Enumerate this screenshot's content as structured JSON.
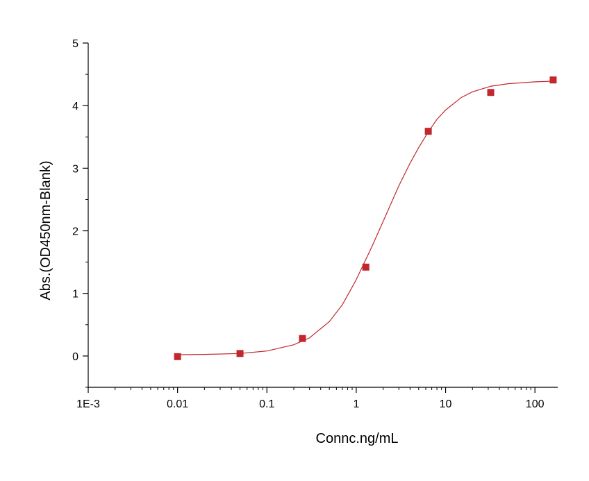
{
  "chart_data": {
    "type": "scatter",
    "title": "",
    "xlabel": "Connc.ng/mL",
    "ylabel": "Abs.(OD450nm-Blank)",
    "x_scale": "log",
    "xlim": [
      0.001,
      180
    ],
    "ylim": [
      -0.5,
      5
    ],
    "x_ticks": [
      0.001,
      0.01,
      0.1,
      1,
      10,
      100
    ],
    "x_tick_labels": [
      "1E-3",
      "0.01",
      "0.1",
      "1",
      "10",
      "100"
    ],
    "y_ticks": [
      0,
      1,
      2,
      3,
      4,
      5
    ],
    "y_tick_labels": [
      "0",
      "1",
      "2",
      "3",
      "4",
      "5"
    ],
    "grid": false,
    "series": [
      {
        "type": "scatter",
        "marker": "square",
        "x": [
          0.01,
          0.05,
          0.25,
          1.28,
          6.4,
          32,
          160
        ],
        "y": [
          -0.01,
          0.04,
          0.28,
          1.42,
          3.59,
          4.21,
          4.41
        ]
      },
      {
        "type": "line",
        "x": [
          0.01,
          0.02,
          0.05,
          0.1,
          0.2,
          0.3,
          0.5,
          0.7,
          1,
          1.5,
          2,
          3,
          4,
          5,
          6.4,
          8,
          10,
          15,
          20,
          32,
          50,
          100,
          160
        ],
        "y": [
          0.02,
          0.025,
          0.04,
          0.08,
          0.18,
          0.29,
          0.55,
          0.82,
          1.22,
          1.75,
          2.15,
          2.72,
          3.08,
          3.33,
          3.58,
          3.78,
          3.93,
          4.13,
          4.22,
          4.31,
          4.35,
          4.38,
          4.39
        ]
      }
    ],
    "colors": {
      "marker": "#c1272d",
      "line": "#c1272d",
      "axis": "#000000"
    }
  }
}
